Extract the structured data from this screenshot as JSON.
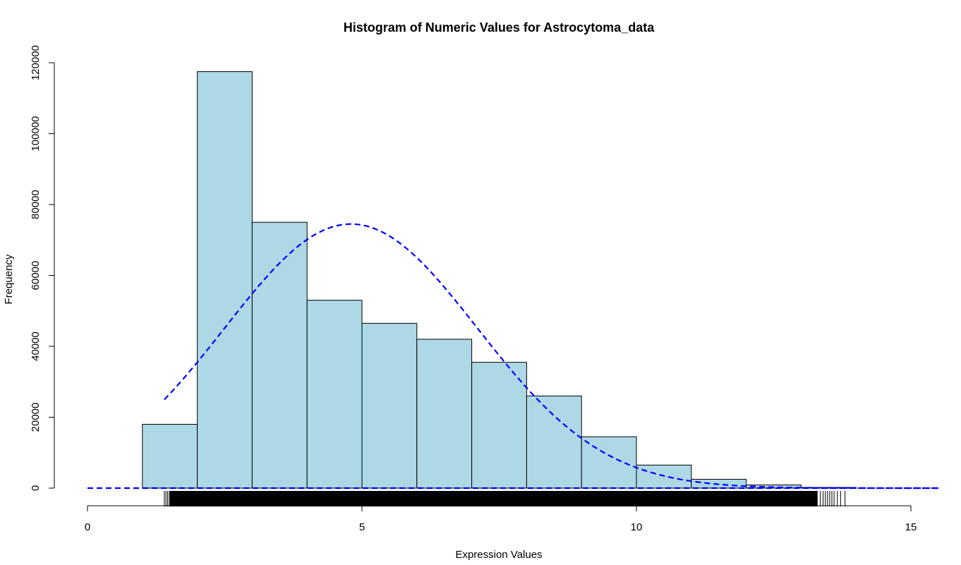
{
  "chart_data": {
    "type": "histogram",
    "title": "Histogram of Numeric Values for Astrocytoma_data",
    "xlabel": "Expression Values",
    "ylabel": "Frequency",
    "xlim": [
      0,
      15
    ],
    "ylim": [
      0,
      120000
    ],
    "x_ticks": [
      "0",
      "5",
      "10",
      "15"
    ],
    "y_ticks": [
      "0",
      "20000",
      "40000",
      "60000",
      "80000",
      "100000",
      "120000"
    ],
    "bins": [
      {
        "start": 1,
        "end": 2,
        "count": 18000
      },
      {
        "start": 2,
        "end": 3,
        "count": 117500
      },
      {
        "start": 3,
        "end": 4,
        "count": 75000
      },
      {
        "start": 4,
        "end": 5,
        "count": 53000
      },
      {
        "start": 5,
        "end": 6,
        "count": 46500
      },
      {
        "start": 6,
        "end": 7,
        "count": 42000
      },
      {
        "start": 7,
        "end": 8,
        "count": 35500
      },
      {
        "start": 8,
        "end": 9,
        "count": 26000
      },
      {
        "start": 9,
        "end": 10,
        "count": 14500
      },
      {
        "start": 10,
        "end": 11,
        "count": 6500
      },
      {
        "start": 11,
        "end": 12,
        "count": 2500
      },
      {
        "start": 12,
        "end": 13,
        "count": 900
      },
      {
        "start": 13,
        "end": 14,
        "count": 200
      }
    ],
    "normal_curve": {
      "mean": 4.8,
      "peak": 74500,
      "sd": 2.3,
      "x_start": 1.4,
      "x_end": 15.5,
      "color": "#0000ff",
      "style": "dashed"
    },
    "baseline_line": {
      "y": 0,
      "x_start": 0,
      "x_end": 15.5,
      "color": "#0000ff",
      "style": "dashed"
    },
    "rug": {
      "dense_start": 1.5,
      "dense_end": 13.3,
      "sparse_start": 1.4,
      "sparse_end": 13.8
    },
    "bar_fill": "#add8e6",
    "bar_stroke": "#000000",
    "grid": false
  }
}
